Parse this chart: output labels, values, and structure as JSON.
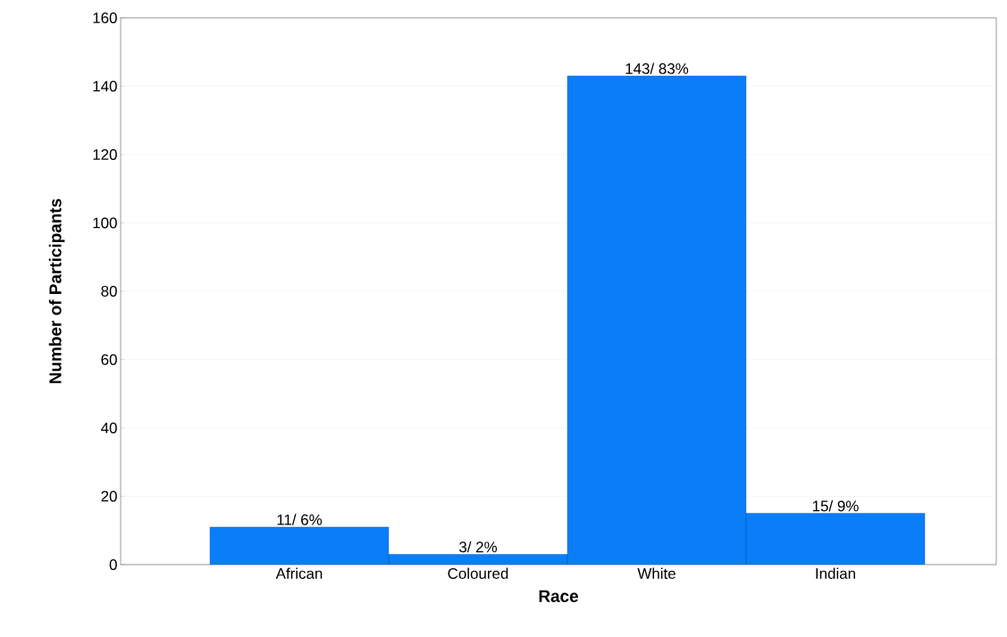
{
  "chart_data": {
    "type": "bar",
    "xlabel": "Race",
    "ylabel": "Number of Participants",
    "categories": [
      "African",
      "Coloured",
      "White",
      "Indian"
    ],
    "values": [
      11,
      3,
      143,
      15
    ],
    "value_labels": [
      "11/ 6%",
      "3/ 2%",
      "143/ 83%",
      "15/ 9%"
    ],
    "color": "#0a7ef8",
    "ylim": [
      0,
      160
    ],
    "yticks": [
      0,
      20,
      40,
      60,
      80,
      100,
      120,
      140,
      160
    ],
    "grid": "y"
  }
}
